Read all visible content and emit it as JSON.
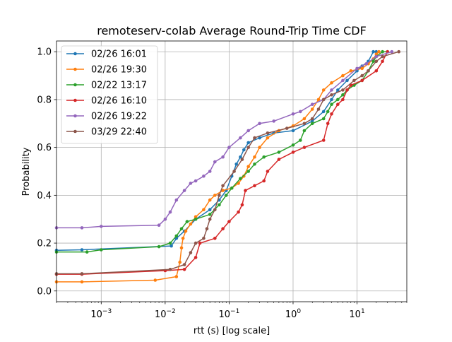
{
  "chart_data": {
    "type": "line",
    "title": "remoteserv-colab Average Round-Trip Time CDF",
    "xlabel": "rtt (s) [log scale]",
    "ylabel": "Probability",
    "x_scale": "log",
    "xlim": [
      0.0002,
      60
    ],
    "ylim": [
      -0.045,
      1.045
    ],
    "x_ticks": [
      {
        "value": 0.001,
        "base": "10",
        "exp": "−3"
      },
      {
        "value": 0.01,
        "base": "10",
        "exp": "−2"
      },
      {
        "value": 0.1,
        "base": "10",
        "exp": "−1"
      },
      {
        "value": 1,
        "base": "10",
        "exp": "0"
      },
      {
        "value": 10,
        "base": "10",
        "exp": "1"
      }
    ],
    "y_ticks": [
      {
        "value": 0.0,
        "label": "0.0"
      },
      {
        "value": 0.2,
        "label": "0.2"
      },
      {
        "value": 0.4,
        "label": "0.4"
      },
      {
        "value": 0.6,
        "label": "0.6"
      },
      {
        "value": 0.8,
        "label": "0.8"
      },
      {
        "value": 1.0,
        "label": "1.0"
      }
    ],
    "grid": true,
    "legend_position": "top-left",
    "markers": "dots",
    "series": [
      {
        "name": "02/26 16:01",
        "color": "#1f77b4",
        "points": [
          [
            0.0002,
            0.17
          ],
          [
            0.0005,
            0.172
          ],
          [
            0.0125,
            0.188
          ],
          [
            0.015,
            0.22
          ],
          [
            0.02,
            0.25
          ],
          [
            0.03,
            0.3
          ],
          [
            0.05,
            0.34
          ],
          [
            0.07,
            0.38
          ],
          [
            0.09,
            0.42
          ],
          [
            0.11,
            0.48
          ],
          [
            0.13,
            0.53
          ],
          [
            0.15,
            0.56
          ],
          [
            0.17,
            0.59
          ],
          [
            0.2,
            0.62
          ],
          [
            0.3,
            0.64
          ],
          [
            0.5,
            0.66
          ],
          [
            1.0,
            0.67
          ],
          [
            2.0,
            0.71
          ],
          [
            3.0,
            0.75
          ],
          [
            4.0,
            0.8
          ],
          [
            5.0,
            0.84
          ],
          [
            7.0,
            0.88
          ],
          [
            10.0,
            0.92
          ],
          [
            12.0,
            0.94
          ],
          [
            15.0,
            0.96
          ],
          [
            18.0,
            1.0
          ],
          [
            20.0,
            1.0
          ]
        ]
      },
      {
        "name": "02/26 19:30",
        "color": "#ff7f0e",
        "points": [
          [
            0.0002,
            0.038
          ],
          [
            0.0005,
            0.038
          ],
          [
            0.007,
            0.045
          ],
          [
            0.015,
            0.06
          ],
          [
            0.017,
            0.12
          ],
          [
            0.018,
            0.18
          ],
          [
            0.019,
            0.22
          ],
          [
            0.021,
            0.25
          ],
          [
            0.025,
            0.28
          ],
          [
            0.03,
            0.31
          ],
          [
            0.04,
            0.34
          ],
          [
            0.05,
            0.38
          ],
          [
            0.06,
            0.4
          ],
          [
            0.08,
            0.42
          ],
          [
            0.11,
            0.43
          ],
          [
            0.14,
            0.45
          ],
          [
            0.17,
            0.48
          ],
          [
            0.2,
            0.52
          ],
          [
            0.25,
            0.56
          ],
          [
            0.3,
            0.6
          ],
          [
            0.4,
            0.64
          ],
          [
            0.6,
            0.67
          ],
          [
            1.0,
            0.69
          ],
          [
            1.5,
            0.72
          ],
          [
            2.0,
            0.76
          ],
          [
            2.5,
            0.8
          ],
          [
            3.0,
            0.84
          ],
          [
            4.0,
            0.87
          ],
          [
            6.0,
            0.9
          ],
          [
            8.0,
            0.92
          ],
          [
            12.0,
            0.93
          ],
          [
            15.0,
            0.95
          ],
          [
            18.0,
            0.97
          ],
          [
            20.0,
            0.99
          ],
          [
            22.0,
            1.0
          ]
        ]
      },
      {
        "name": "02/22 13:17",
        "color": "#2ca02c",
        "points": [
          [
            0.0002,
            0.163
          ],
          [
            0.0006,
            0.163
          ],
          [
            0.001,
            0.172
          ],
          [
            0.008,
            0.185
          ],
          [
            0.012,
            0.2
          ],
          [
            0.015,
            0.23
          ],
          [
            0.018,
            0.26
          ],
          [
            0.022,
            0.29
          ],
          [
            0.03,
            0.3
          ],
          [
            0.05,
            0.32
          ],
          [
            0.07,
            0.36
          ],
          [
            0.09,
            0.4
          ],
          [
            0.11,
            0.43
          ],
          [
            0.15,
            0.47
          ],
          [
            0.2,
            0.5
          ],
          [
            0.25,
            0.53
          ],
          [
            0.35,
            0.56
          ],
          [
            0.6,
            0.58
          ],
          [
            1.0,
            0.61
          ],
          [
            1.3,
            0.63
          ],
          [
            1.5,
            0.67
          ],
          [
            2.0,
            0.7
          ],
          [
            3.0,
            0.72
          ],
          [
            3.5,
            0.75
          ],
          [
            4.0,
            0.78
          ],
          [
            5.0,
            0.8
          ],
          [
            6.0,
            0.82
          ],
          [
            7.0,
            0.84
          ],
          [
            9.0,
            0.86
          ],
          [
            12.0,
            0.88
          ],
          [
            15.0,
            0.92
          ],
          [
            18.0,
            0.96
          ],
          [
            20.0,
            0.98
          ],
          [
            25.0,
            1.0
          ],
          [
            30.0,
            1.0
          ]
        ]
      },
      {
        "name": "02/26 16:10",
        "color": "#d62728",
        "points": [
          [
            0.0002,
            0.07
          ],
          [
            0.0005,
            0.07
          ],
          [
            0.01,
            0.085
          ],
          [
            0.02,
            0.09
          ],
          [
            0.03,
            0.14
          ],
          [
            0.035,
            0.2
          ],
          [
            0.06,
            0.22
          ],
          [
            0.08,
            0.26
          ],
          [
            0.1,
            0.29
          ],
          [
            0.14,
            0.33
          ],
          [
            0.16,
            0.36
          ],
          [
            0.18,
            0.42
          ],
          [
            0.25,
            0.44
          ],
          [
            0.35,
            0.46
          ],
          [
            0.4,
            0.5
          ],
          [
            0.6,
            0.55
          ],
          [
            1.0,
            0.58
          ],
          [
            1.5,
            0.6
          ],
          [
            3.0,
            0.63
          ],
          [
            3.5,
            0.7
          ],
          [
            4.0,
            0.74
          ],
          [
            5.0,
            0.78
          ],
          [
            6.0,
            0.8
          ],
          [
            7.0,
            0.84
          ],
          [
            8.0,
            0.86
          ],
          [
            12.0,
            0.88
          ],
          [
            20.0,
            0.92
          ],
          [
            25.0,
            0.96
          ],
          [
            30.0,
            1.0
          ]
        ]
      },
      {
        "name": "02/26 19:22",
        "color": "#9467bd",
        "points": [
          [
            0.0002,
            0.264
          ],
          [
            0.0005,
            0.264
          ],
          [
            0.001,
            0.27
          ],
          [
            0.008,
            0.275
          ],
          [
            0.01,
            0.3
          ],
          [
            0.012,
            0.33
          ],
          [
            0.015,
            0.38
          ],
          [
            0.02,
            0.42
          ],
          [
            0.025,
            0.45
          ],
          [
            0.03,
            0.46
          ],
          [
            0.04,
            0.48
          ],
          [
            0.05,
            0.5
          ],
          [
            0.06,
            0.54
          ],
          [
            0.08,
            0.56
          ],
          [
            0.1,
            0.6
          ],
          [
            0.15,
            0.64
          ],
          [
            0.2,
            0.67
          ],
          [
            0.3,
            0.7
          ],
          [
            0.5,
            0.71
          ],
          [
            1.0,
            0.74
          ],
          [
            1.3,
            0.75
          ],
          [
            2.0,
            0.78
          ],
          [
            3.0,
            0.8
          ],
          [
            4.0,
            0.84
          ],
          [
            6.0,
            0.88
          ],
          [
            10.0,
            0.93
          ],
          [
            14.0,
            0.95
          ],
          [
            20.0,
            0.98
          ],
          [
            35.0,
            1.0
          ]
        ]
      },
      {
        "name": "03/29 22:40",
        "color": "#8c564b",
        "points": [
          [
            0.0002,
            0.072
          ],
          [
            0.0005,
            0.072
          ],
          [
            0.012,
            0.09
          ],
          [
            0.02,
            0.11
          ],
          [
            0.025,
            0.16
          ],
          [
            0.03,
            0.2
          ],
          [
            0.04,
            0.22
          ],
          [
            0.045,
            0.26
          ],
          [
            0.05,
            0.3
          ],
          [
            0.06,
            0.34
          ],
          [
            0.07,
            0.4
          ],
          [
            0.08,
            0.44
          ],
          [
            0.12,
            0.5
          ],
          [
            0.16,
            0.55
          ],
          [
            0.2,
            0.6
          ],
          [
            0.25,
            0.64
          ],
          [
            0.4,
            0.66
          ],
          [
            0.8,
            0.68
          ],
          [
            1.5,
            0.7
          ],
          [
            2.0,
            0.72
          ],
          [
            2.5,
            0.76
          ],
          [
            3.0,
            0.8
          ],
          [
            4.0,
            0.82
          ],
          [
            6.0,
            0.84
          ],
          [
            9.0,
            0.88
          ],
          [
            12.0,
            0.9
          ],
          [
            15.0,
            0.92
          ],
          [
            20.0,
            0.96
          ],
          [
            25.0,
            0.98
          ],
          [
            45.0,
            1.0
          ]
        ]
      }
    ]
  }
}
